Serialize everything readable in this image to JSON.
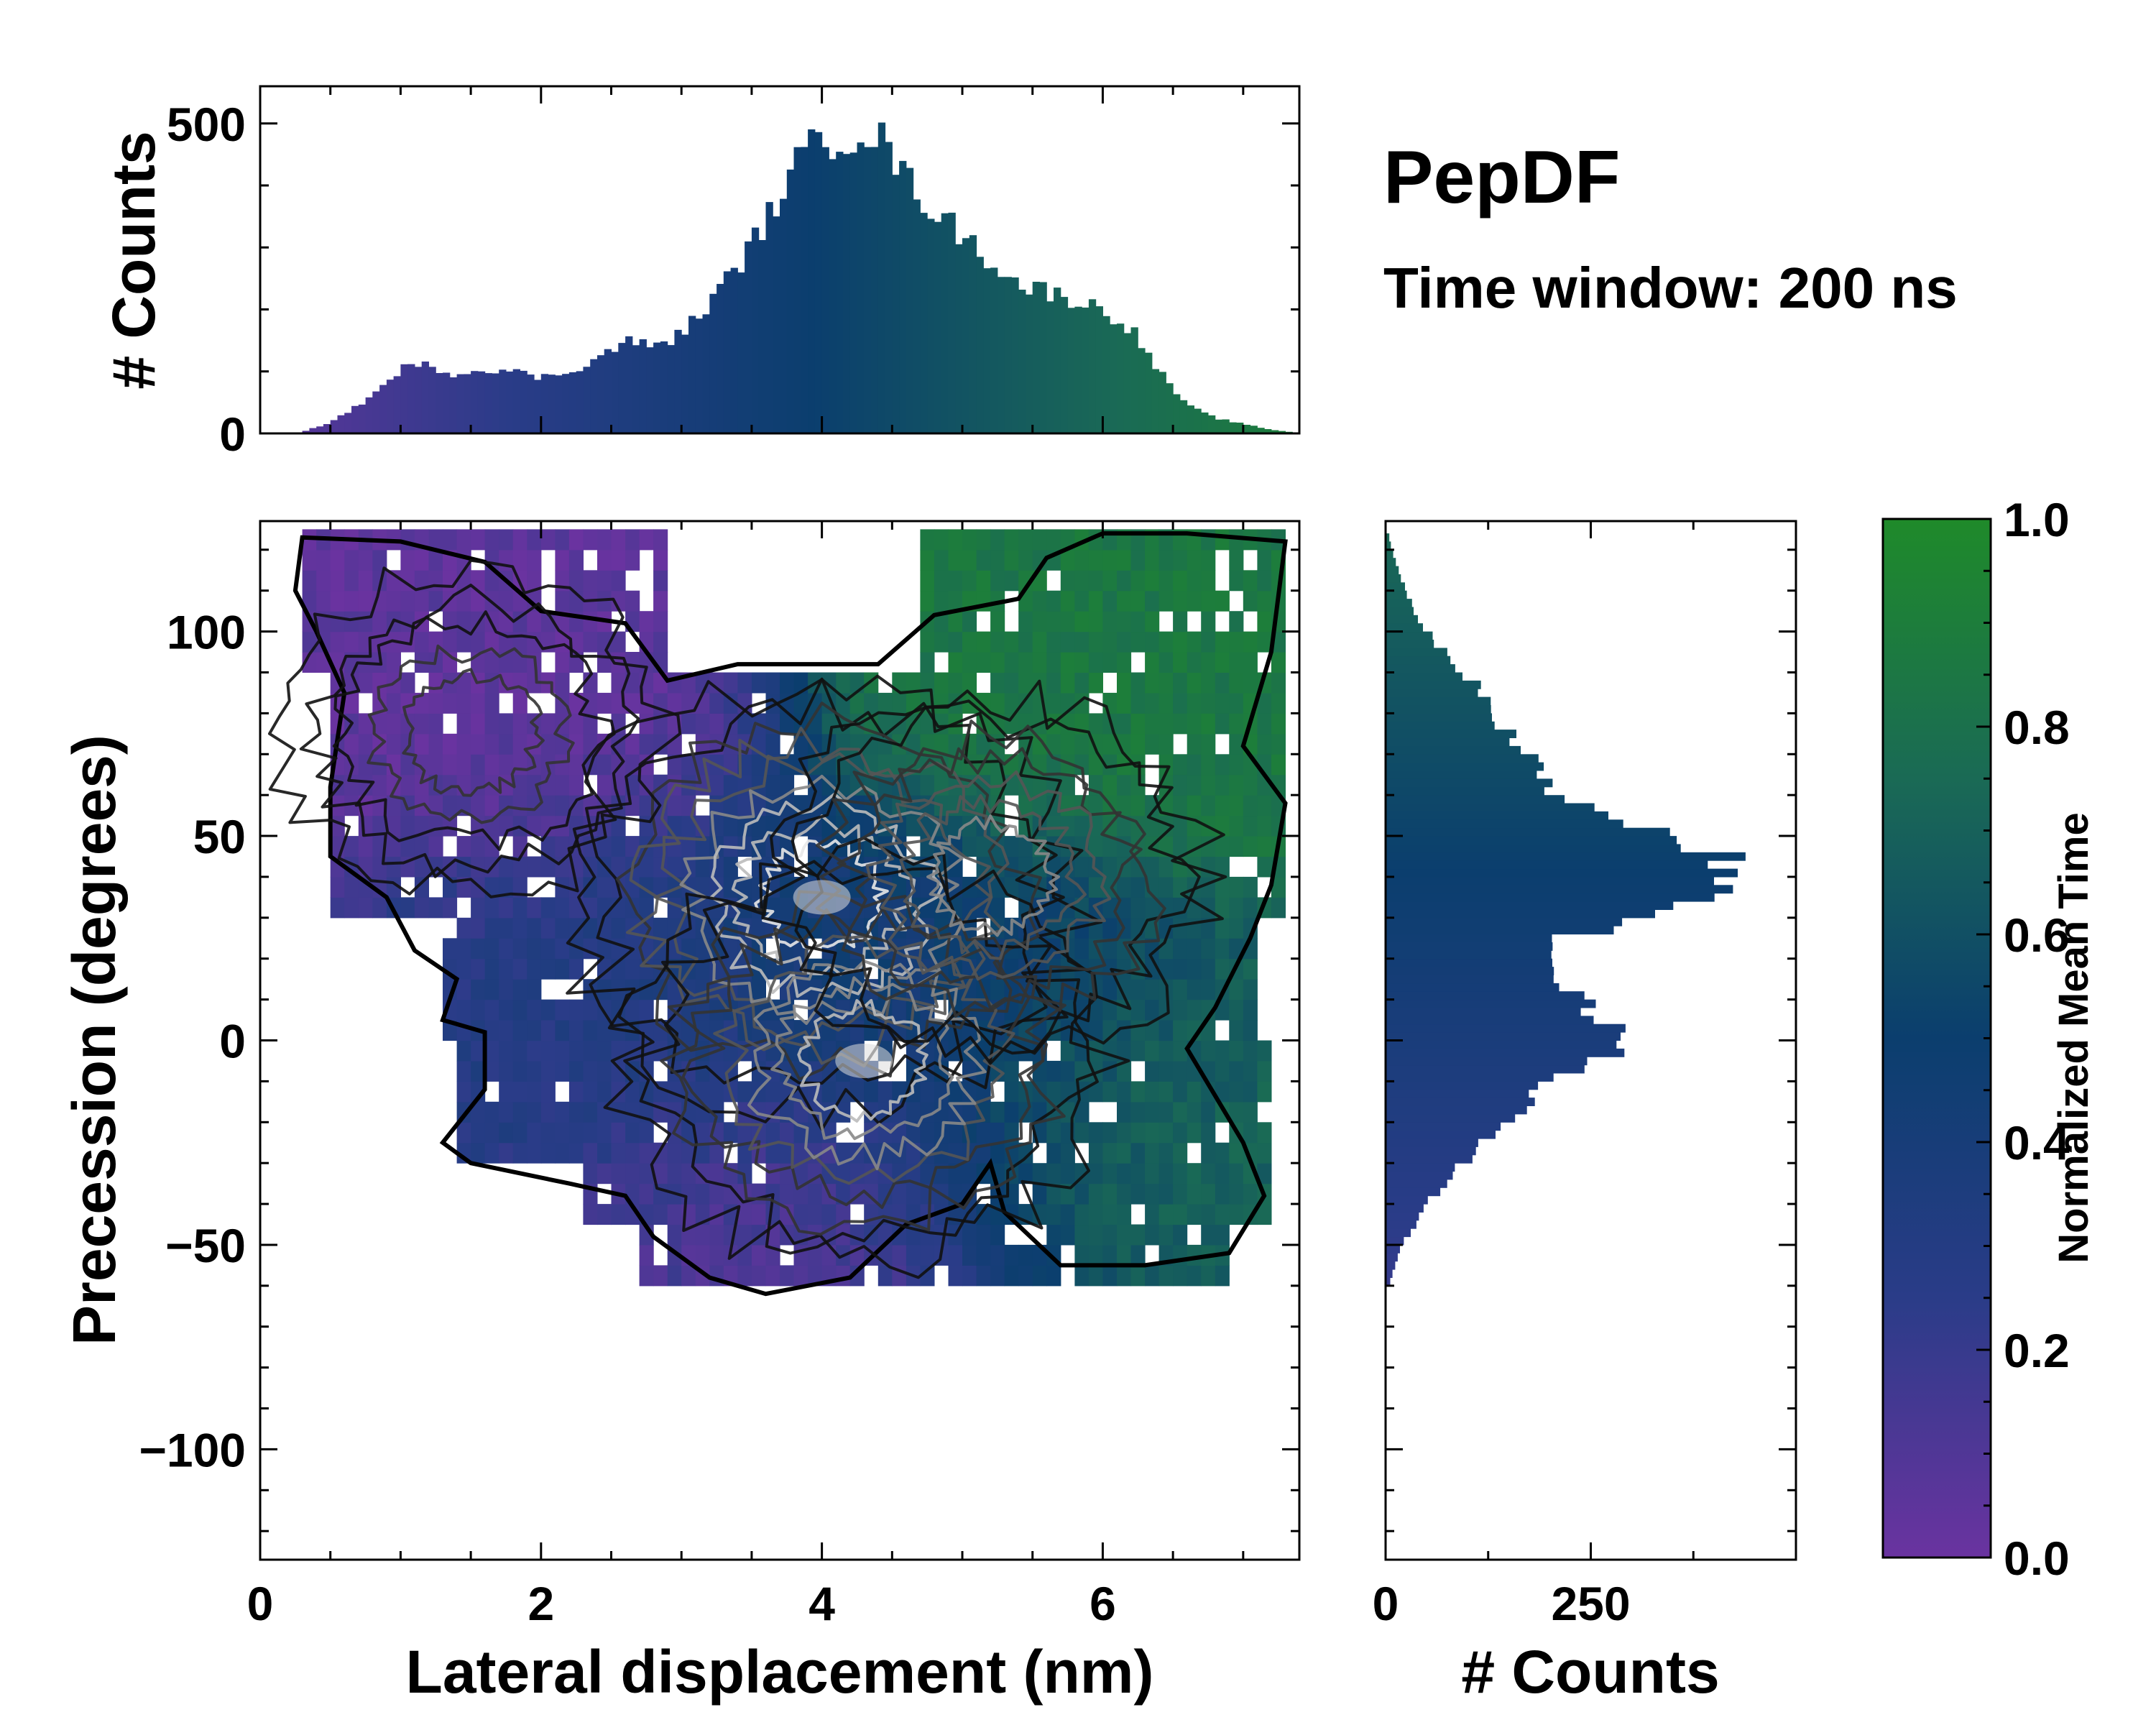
{
  "title": "PepDF",
  "subtitle": "Time window: 200 ns",
  "colorscale": {
    "stops": [
      "#6a33a0",
      "#2a3c88",
      "#0b3e6e",
      "#1a6a55",
      "#1f8a2a"
    ],
    "contour_colors": [
      "#111111",
      "#333333",
      "#555555",
      "#888888",
      "#bbbbbb",
      "#e8e8e8"
    ],
    "empty_color": "#ffffff"
  },
  "chart_data": [
    {
      "type": "heatmap",
      "id": "main",
      "xlabel": "Lateral displacement (nm)",
      "ylabel": "Precession (degrees)",
      "xlim": [
        0,
        7.4
      ],
      "ylim": [
        -127,
        127
      ],
      "xticks": [
        0,
        2,
        4,
        6
      ],
      "xtick_labels": [
        "0",
        "2",
        "4",
        "6"
      ],
      "yticks": [
        -100,
        -50,
        0,
        50,
        100
      ],
      "ytick_labels": [
        "−100",
        "−50",
        "0",
        "50",
        "100"
      ],
      "bin_width_x": 0.1,
      "bin_width_y": 5,
      "density_peaks": [
        {
          "x": 4.0,
          "y": 35,
          "weight": 1.0
        },
        {
          "x": 4.3,
          "y": -5,
          "weight": 0.85
        },
        {
          "x": 5.2,
          "y": 40,
          "weight": 0.6
        },
        {
          "x": 1.5,
          "y": 75,
          "weight": 0.35
        }
      ],
      "color_encodes": "Normalized Mean Time",
      "color_regions": [
        {
          "region": "upper-left",
          "x_range": [
            0.2,
            3.0
          ],
          "y_range": [
            40,
            120
          ],
          "value": 0.05
        },
        {
          "region": "left-center",
          "x_range": [
            1.0,
            3.5
          ],
          "y_range": [
            -20,
            40
          ],
          "value": 0.3
        },
        {
          "region": "center",
          "x_range": [
            3.5,
            5.5
          ],
          "y_range": [
            -30,
            60
          ],
          "value": 0.45
        },
        {
          "region": "bottom-center",
          "x_range": [
            2.8,
            5.0
          ],
          "y_range": [
            -62,
            -30
          ],
          "value": 0.12
        },
        {
          "region": "upper-right",
          "x_range": [
            4.5,
            7.3
          ],
          "y_range": [
            50,
            125
          ],
          "value": 0.85
        },
        {
          "region": "lower-right",
          "x_range": [
            5.3,
            7.2
          ],
          "y_range": [
            -55,
            0
          ],
          "value": 0.7
        }
      ]
    },
    {
      "type": "bar",
      "id": "top-histogram",
      "xlabel": "",
      "ylabel": "# Counts",
      "xlim": [
        0,
        7.4
      ],
      "ylim": [
        0,
        560
      ],
      "yticks": [
        0,
        500
      ],
      "ytick_labels": [
        "0",
        "500"
      ],
      "bin_width": 0.05,
      "x": [
        0.3,
        0.5,
        0.7,
        0.9,
        1.0,
        1.2,
        1.4,
        1.6,
        1.8,
        2.0,
        2.2,
        2.4,
        2.6,
        2.8,
        3.0,
        3.2,
        3.4,
        3.6,
        3.8,
        3.9,
        4.0,
        4.1,
        4.2,
        4.3,
        4.4,
        4.5,
        4.6,
        4.8,
        5.0,
        5.2,
        5.4,
        5.6,
        5.8,
        6.0,
        6.2,
        6.4,
        6.6,
        6.8,
        7.0,
        7.2,
        7.35
      ],
      "values": [
        2,
        18,
        45,
        80,
        105,
        110,
        95,
        105,
        100,
        90,
        100,
        120,
        150,
        140,
        160,
        210,
        270,
        340,
        430,
        450,
        490,
        470,
        480,
        490,
        480,
        450,
        410,
        360,
        320,
        280,
        240,
        230,
        215,
        200,
        170,
        100,
        45,
        25,
        15,
        6,
        2
      ],
      "bar_color_encodes": "Normalized Mean Time"
    },
    {
      "type": "bar",
      "orientation": "horizontal",
      "id": "right-histogram",
      "xlabel": "# Counts",
      "ylabel": "",
      "xlim": [
        0,
        500
      ],
      "ylim": [
        -127,
        127
      ],
      "xticks": [
        0,
        250
      ],
      "xtick_labels": [
        "0",
        "250"
      ],
      "bin_width": 2,
      "y": [
        -60,
        -50,
        -40,
        -30,
        -20,
        -10,
        -5,
        0,
        5,
        10,
        15,
        20,
        25,
        30,
        35,
        40,
        45,
        50,
        55,
        60,
        65,
        70,
        75,
        80,
        85,
        90,
        95,
        100,
        105,
        110,
        115,
        120,
        124
      ],
      "values": [
        4,
        20,
        50,
        95,
        150,
        200,
        265,
        285,
        270,
        240,
        215,
        190,
        220,
        320,
        400,
        420,
        410,
        360,
        270,
        210,
        190,
        170,
        150,
        135,
        120,
        95,
        70,
        50,
        35,
        25,
        15,
        8,
        3
      ],
      "bar_color_encodes": "Normalized Mean Time"
    },
    {
      "type": "colorbar",
      "id": "colorbar",
      "label": "Normalized Mean Time",
      "range": [
        0,
        1
      ],
      "ticks": [
        0,
        0.2,
        0.4,
        0.6,
        0.8,
        1.0
      ],
      "tick_labels": [
        "0.0",
        "0.2",
        "0.4",
        "0.6",
        "0.8",
        "1.0"
      ]
    }
  ]
}
